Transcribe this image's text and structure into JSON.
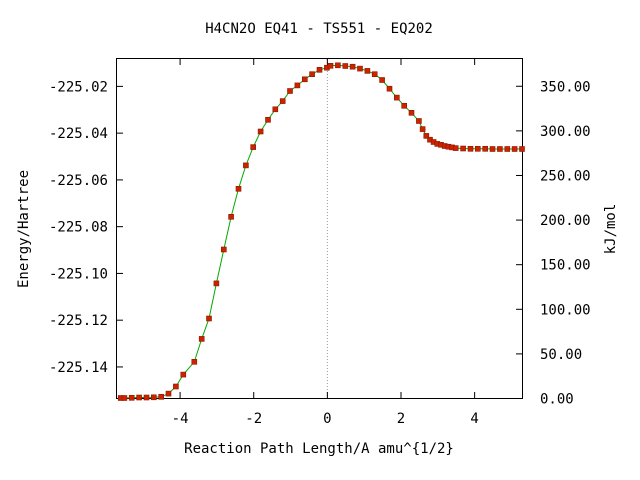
{
  "chart_data": {
    "type": "line",
    "title": "H4CN2O   EQ41 - TS551 - EQ202",
    "xlabel": "Reaction Path Length/A amu^{1/2}",
    "ylabel_left": "Energy/Hartree",
    "ylabel_right": "kJ/mol",
    "xlim": [
      -5.7,
      5.3
    ],
    "ylim": [
      -225.1535,
      -225.0085
    ],
    "y2lim": [
      0.0,
      380.0
    ],
    "x_ticks": [
      -4,
      -2,
      0,
      2,
      4
    ],
    "y_ticks": [
      -225.02,
      -225.04,
      -225.06,
      -225.08,
      -225.1,
      -225.12,
      -225.14
    ],
    "y_tick_labels": [
      "-225.02",
      "-225.04",
      "-225.06",
      "-225.08",
      "-225.10",
      "-225.12",
      "-225.14"
    ],
    "y2_ticks": [
      0,
      50,
      100,
      150,
      200,
      250,
      300,
      350
    ],
    "y2_tick_labels": [
      "0.00",
      "50.00",
      "100.00",
      "150.00",
      "200.00",
      "250.00",
      "300.00",
      "350.00"
    ],
    "ts_line_x": 0,
    "colors": {
      "line": "#00aa00",
      "marker": "#cc2200",
      "marker_edge": "#8a1a00",
      "ts_line": "#999999"
    },
    "points": {
      "x": [
        -5.6,
        -5.5,
        -5.3,
        -5.1,
        -4.9,
        -4.7,
        -4.5,
        -4.3,
        -4.1,
        -3.9,
        -3.6,
        -3.4,
        -3.2,
        -3.0,
        -2.8,
        -2.6,
        -2.4,
        -2.2,
        -2.0,
        -1.8,
        -1.6,
        -1.4,
        -1.2,
        -1.0,
        -0.8,
        -0.6,
        -0.4,
        -0.2,
        0.0,
        0.1,
        0.3,
        0.5,
        0.7,
        0.9,
        1.1,
        1.3,
        1.5,
        1.7,
        1.9,
        2.1,
        2.3,
        2.5,
        2.6,
        2.7,
        2.8,
        2.9,
        3.0,
        3.1,
        3.2,
        3.3,
        3.4,
        3.5,
        3.7,
        3.9,
        4.1,
        4.3,
        4.5,
        4.7,
        4.9,
        5.1,
        5.3
      ],
      "y": [
        -225.1535,
        -225.1535,
        -225.1534,
        -225.1533,
        -225.1533,
        -225.1532,
        -225.153,
        -225.1516,
        -225.1486,
        -225.1435,
        -225.138,
        -225.1282,
        -225.1195,
        -225.1045,
        -225.09,
        -225.076,
        -225.064,
        -225.054,
        -225.0462,
        -225.0395,
        -225.0345,
        -225.03,
        -225.0265,
        -225.0222,
        -225.0198,
        -225.0172,
        -225.015,
        -225.0131,
        -225.0122,
        -225.0114,
        -225.0112,
        -225.0115,
        -225.0118,
        -225.0126,
        -225.0136,
        -225.015,
        -225.0175,
        -225.0212,
        -225.025,
        -225.0285,
        -225.0315,
        -225.035,
        -225.0385,
        -225.0414,
        -225.043,
        -225.044,
        -225.0448,
        -225.0452,
        -225.0457,
        -225.046,
        -225.0463,
        -225.0466,
        -225.0468,
        -225.0469,
        -225.0469,
        -225.0469,
        -225.047,
        -225.047,
        -225.047,
        -225.047,
        -225.047
      ]
    }
  }
}
